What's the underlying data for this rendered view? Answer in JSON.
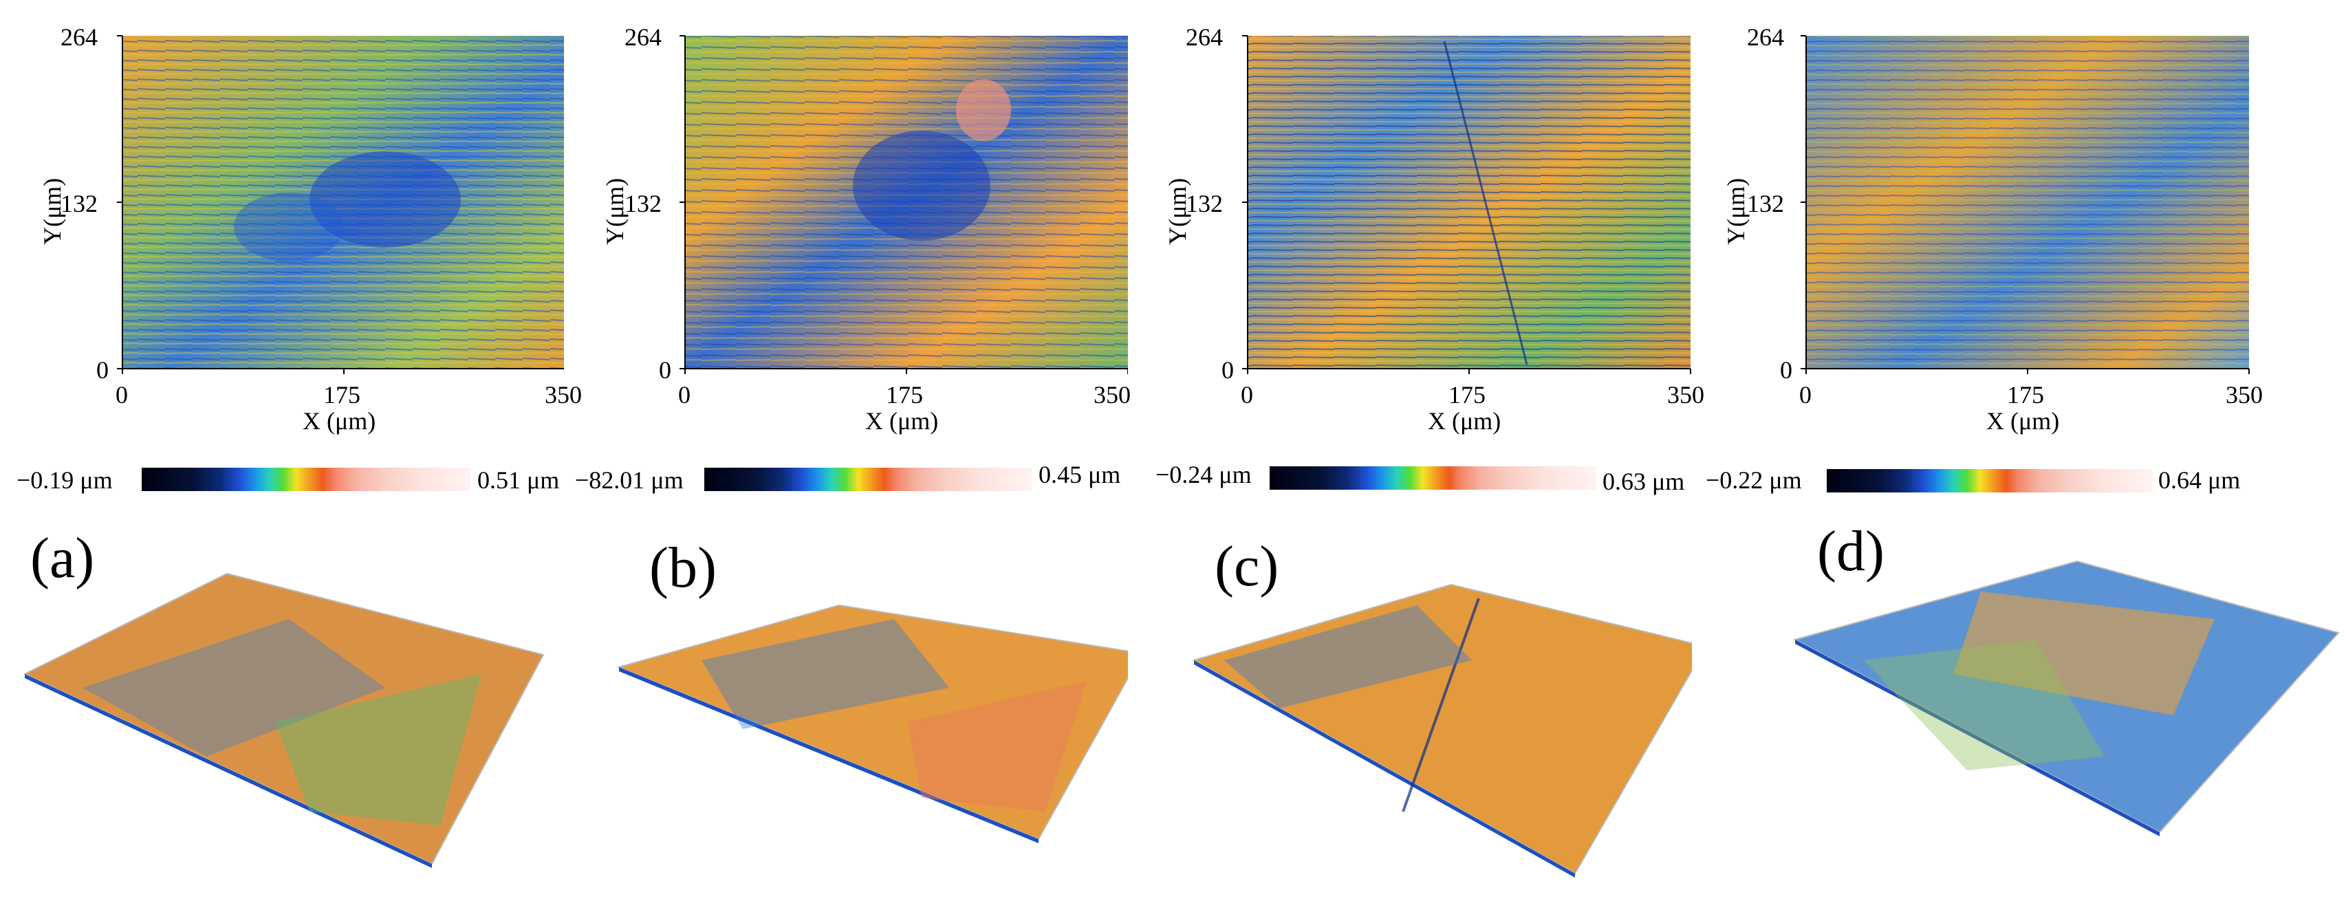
{
  "figure": {
    "panels": [
      {
        "label": "(a)",
        "x_axis": {
          "label": "X (μm)",
          "ticks": [
            "0",
            "175",
            "350"
          ]
        },
        "y_axis": {
          "label": "Y(μm)",
          "ticks": [
            "0",
            "132",
            "264"
          ]
        },
        "colorbar": {
          "min": "−0.19 μm",
          "max": "0.51 μm"
        }
      },
      {
        "label": "(b)",
        "x_axis": {
          "label": "X (μm)",
          "ticks": [
            "0",
            "175",
            "350"
          ]
        },
        "y_axis": {
          "label": "Y(μm)",
          "ticks": [
            "0",
            "132",
            "264"
          ]
        },
        "colorbar": {
          "min": "−82.01 μm",
          "max": "0.45 μm"
        }
      },
      {
        "label": "(c)",
        "x_axis": {
          "label": "X (μm)",
          "ticks": [
            "0",
            "175",
            "350"
          ]
        },
        "y_axis": {
          "label": "Y(μm)",
          "ticks": [
            "0",
            "132",
            "264"
          ]
        },
        "colorbar": {
          "min": "−0.24 μm",
          "max": "0.63 μm"
        }
      },
      {
        "label": "(d)",
        "x_axis": {
          "label": "X (μm)",
          "ticks": [
            "0",
            "175",
            "350"
          ]
        },
        "y_axis": {
          "label": "Y(μm)",
          "ticks": [
            "0",
            "132",
            "264"
          ]
        },
        "colorbar": {
          "min": "−0.22 μm",
          "max": "0.64 μm"
        }
      }
    ]
  }
}
